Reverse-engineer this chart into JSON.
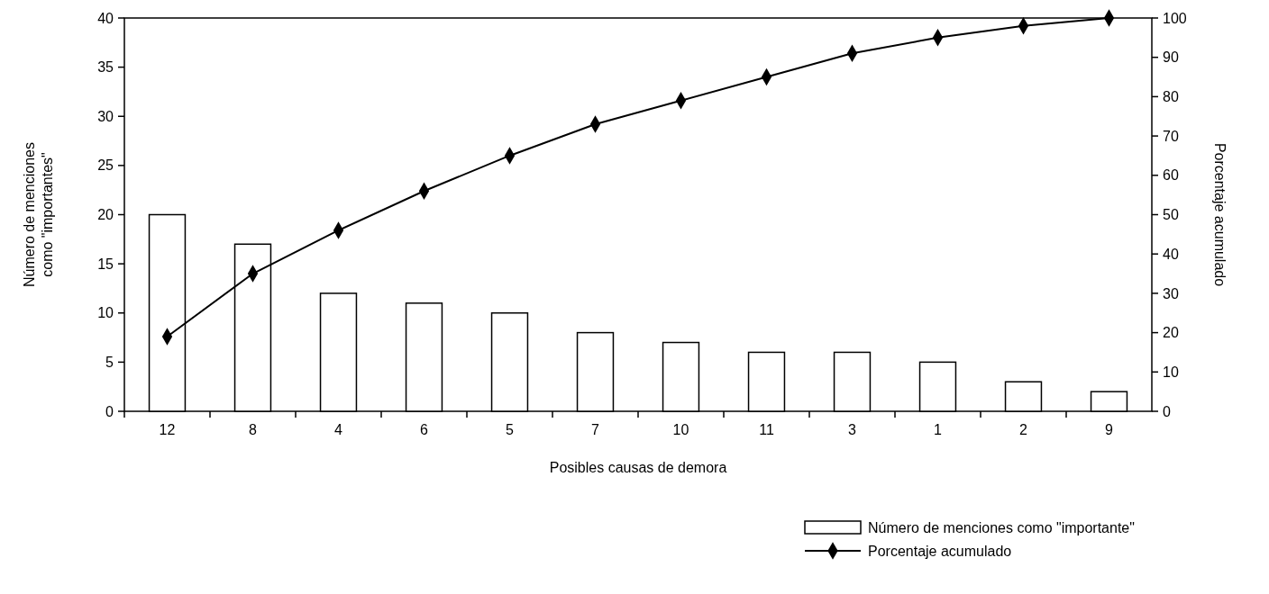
{
  "chart_data": {
    "type": "bar",
    "xlabel": "Posibles causas de demora",
    "ylabel": "Número de menciones como \"importantes\"",
    "y2label": "Porcentaje acumulado",
    "categories": [
      "12",
      "8",
      "4",
      "6",
      "5",
      "7",
      "10",
      "11",
      "3",
      "1",
      "2",
      "9"
    ],
    "series": [
      {
        "name": "Número de menciones como \"importante\"",
        "color": "#ffffff",
        "values": [
          20,
          17,
          12,
          11,
          10,
          8,
          7,
          6,
          6,
          5,
          3,
          2
        ]
      },
      {
        "name": "Porcentaje acumulado",
        "type": "line",
        "axis": "y2",
        "color": "#000000",
        "marker": "diamond",
        "values": [
          19,
          35,
          46,
          56,
          65,
          73,
          79,
          85,
          91,
          95,
          98,
          100
        ]
      }
    ],
    "ylim": [
      0,
      40
    ],
    "yticks": [
      0,
      5,
      10,
      15,
      20,
      25,
      30,
      35,
      40
    ],
    "y2lim": [
      0,
      100
    ],
    "y2ticks": [
      0,
      10,
      20,
      30,
      40,
      50,
      60,
      70,
      80,
      90,
      100
    ],
    "grid": false,
    "legend": "bottom right"
  }
}
